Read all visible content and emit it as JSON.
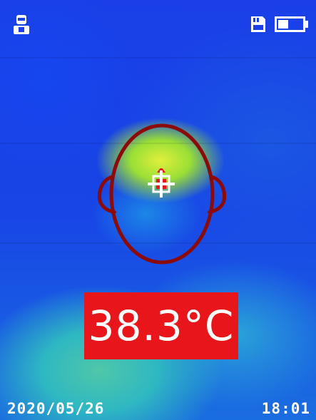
{
  "status_bar": {
    "left_icon": "person-mask-icon",
    "right_icons": [
      "sd-card-icon",
      "battery-icon"
    ]
  },
  "viewfinder": {
    "overlay_icon": "head-outline-icon",
    "target_icon": "crosshair-icon",
    "colors": {
      "outline": "#8b0a0a",
      "crosshair": "#ffffff",
      "marker": "#e8161a"
    }
  },
  "temperature": {
    "value": "38.3°C",
    "background": "#e8161a"
  },
  "footer": {
    "date": "2020/05/26",
    "time": "18:01"
  }
}
